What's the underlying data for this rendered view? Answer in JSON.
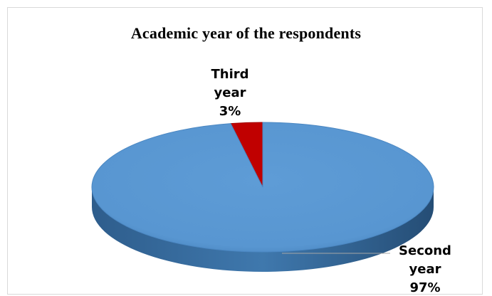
{
  "chart_data": {
    "type": "pie",
    "title": "Academic year of the respondents",
    "slices": [
      {
        "label_line1": "Third",
        "label_line2": "year",
        "percent_label": "3%",
        "value": 3,
        "color": "#c00000"
      },
      {
        "label_line1": "Second",
        "label_line2": "year",
        "percent_label": "97%",
        "value": 97,
        "color": "#5b9bd5"
      }
    ],
    "style": "3d-pie",
    "legend": "none"
  }
}
